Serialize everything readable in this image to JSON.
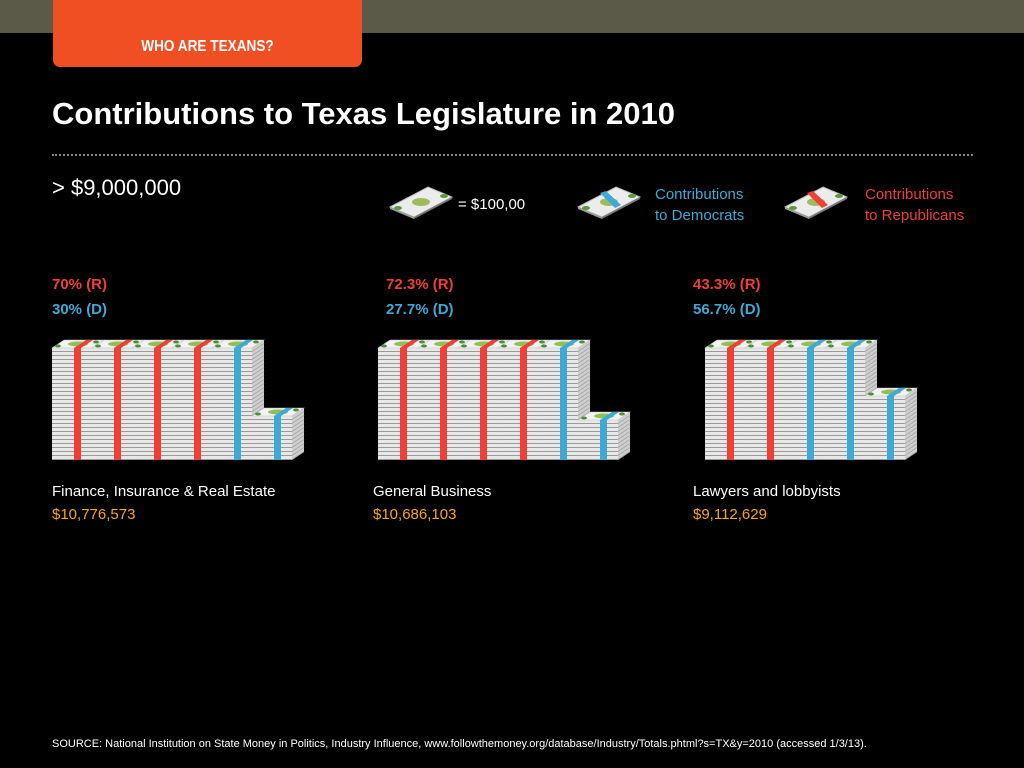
{
  "header": {
    "tab_label": "WHO ARE TEXANS?"
  },
  "title": "Contributions to Texas Legislature in 2010",
  "threshold": "> $9,000,000",
  "legend": {
    "unit_label": "= $100,00",
    "dem_line1": "Contributions",
    "dem_line2": "to Democrats",
    "rep_line1": "Contributions",
    "rep_line2": "to Republicans"
  },
  "colors": {
    "republican": "#ee4035",
    "democrat": "#3fa9d6",
    "amount": "#f6a623",
    "accent": "#f04e23",
    "topbar": "#5b5a48"
  },
  "chart_data": {
    "type": "bar",
    "categories": [
      "Finance, Insurance & Real Estate",
      "General Business",
      "Lawyers and lobbyists"
    ],
    "series": [
      {
        "name": "Contributions to Republicans",
        "values": [
          70,
          72.3,
          43.3
        ]
      },
      {
        "name": "Contributions to Democrats",
        "values": [
          30,
          27.7,
          56.7
        ]
      }
    ],
    "totals": [
      10776573,
      10686103,
      9112629
    ],
    "panels": [
      {
        "name": "Finance, Insurance & Real Estate",
        "amount": "$10,776,573",
        "rep_label": "70% (R)",
        "dem_label": "30% (D)",
        "rep": 70,
        "dem": 30,
        "total": 10776573
      },
      {
        "name": "General Business",
        "amount": "$10,686,103",
        "rep_label": "72.3% (R)",
        "dem_label": "27.7% (D)",
        "rep": 72.3,
        "dem": 27.7,
        "total": 10686103
      },
      {
        "name": "Lawyers and lobbyists",
        "amount": "$9,112,629",
        "rep_label": "43.3% (R)",
        "dem_label": "56.7% (D)",
        "rep": 43.3,
        "dem": 56.7,
        "total": 9112629
      }
    ]
  },
  "source": "SOURCE: National Institution on State Money in Politics, Industry Influence, www.followthemoney.org/database/Industry/Totals.phtml?s=TX&y=2010 (accessed 1/3/13)."
}
